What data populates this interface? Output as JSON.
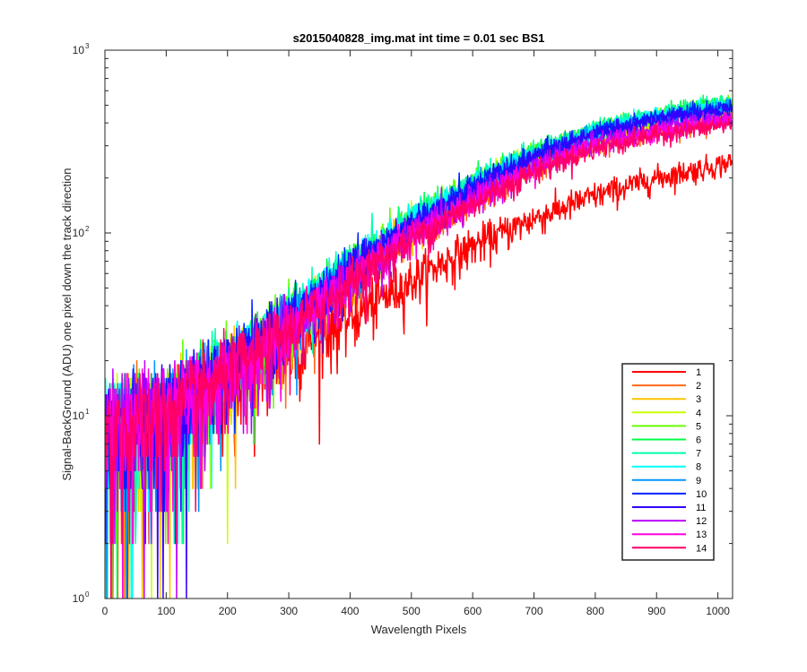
{
  "chart_data": {
    "type": "line",
    "title": "s2015040828_img.mat int time = 0.01 sec   BS1",
    "xlabel": "Wavelength Pixels",
    "ylabel": "Signal-BackGround (ADU) one pixel down the track direction",
    "xlim": [
      0,
      1024
    ],
    "ylim": [
      1,
      1000
    ],
    "yscale": "log",
    "x_ticks": [
      0,
      100,
      200,
      300,
      400,
      500,
      600,
      700,
      800,
      900,
      1000
    ],
    "y_ticks": [
      {
        "base": "10",
        "exp": "0",
        "value": 1
      },
      {
        "base": "10",
        "exp": "1",
        "value": 10
      },
      {
        "base": "10",
        "exp": "2",
        "value": 100
      },
      {
        "base": "10",
        "exp": "3",
        "value": 1000
      }
    ],
    "grid": false,
    "legend_position": "lower-right",
    "x_knots": [
      0,
      100,
      200,
      300,
      400,
      500,
      600,
      700,
      800,
      900,
      1000,
      1023
    ],
    "series": [
      {
        "name": "1",
        "color": "#ff0000",
        "values": [
          8,
          10,
          14,
          22,
          35,
          55,
          85,
          120,
          160,
          200,
          235,
          245
        ]
      },
      {
        "name": "2",
        "color": "#ff6a1a",
        "values": [
          8,
          10,
          17,
          29,
          55,
          95,
          150,
          225,
          300,
          360,
          410,
          420
        ]
      },
      {
        "name": "3",
        "color": "#ffc400",
        "values": [
          8,
          10,
          18,
          31,
          60,
          105,
          165,
          250,
          330,
          400,
          450,
          460
        ]
      },
      {
        "name": "4",
        "color": "#c8ff00",
        "values": [
          8,
          10,
          18,
          33,
          65,
          115,
          180,
          270,
          360,
          430,
          490,
          500
        ]
      },
      {
        "name": "5",
        "color": "#66ff00",
        "values": [
          8,
          10,
          19,
          34,
          67,
          118,
          185,
          275,
          365,
          440,
          495,
          505
        ]
      },
      {
        "name": "6",
        "color": "#00ff44",
        "values": [
          8,
          10,
          19,
          34,
          68,
          120,
          188,
          278,
          370,
          445,
          500,
          510
        ]
      },
      {
        "name": "7",
        "color": "#00ffaa",
        "values": [
          8,
          10,
          19,
          35,
          68,
          120,
          190,
          280,
          372,
          448,
          505,
          520
        ]
      },
      {
        "name": "8",
        "color": "#00ffff",
        "values": [
          8,
          10,
          19,
          34,
          66,
          116,
          183,
          272,
          360,
          435,
          490,
          500
        ]
      },
      {
        "name": "9",
        "color": "#0095ff",
        "values": [
          8,
          10,
          18,
          33,
          63,
          110,
          175,
          262,
          350,
          425,
          480,
          490
        ]
      },
      {
        "name": "10",
        "color": "#0022ff",
        "values": [
          8,
          10,
          18,
          33,
          64,
          112,
          178,
          265,
          355,
          430,
          485,
          495
        ]
      },
      {
        "name": "11",
        "color": "#3300ff",
        "values": [
          8,
          10,
          18,
          32,
          62,
          108,
          172,
          258,
          345,
          418,
          470,
          480
        ]
      },
      {
        "name": "12",
        "color": "#bb00ff",
        "values": [
          8,
          10,
          17,
          30,
          57,
          98,
          155,
          232,
          310,
          370,
          420,
          430
        ]
      },
      {
        "name": "13",
        "color": "#ff00dd",
        "values": [
          8,
          10,
          17,
          29,
          55,
          95,
          150,
          225,
          300,
          355,
          400,
          410
        ]
      },
      {
        "name": "14",
        "color": "#ff0066",
        "values": [
          8,
          10,
          17,
          29,
          54,
          92,
          145,
          218,
          290,
          345,
          385,
          395
        ]
      }
    ]
  }
}
